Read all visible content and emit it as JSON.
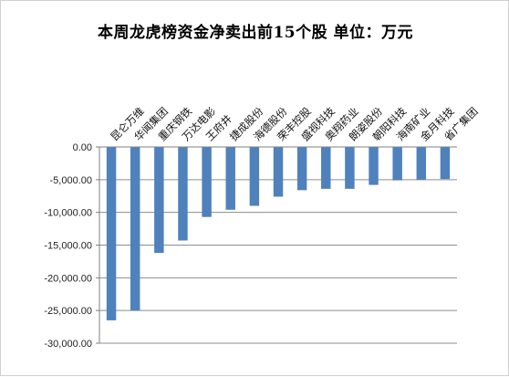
{
  "chart_data": {
    "type": "bar",
    "title": "本周龙虎榜资金净卖出前15个股  单位：万元",
    "categories": [
      "昆仑万维",
      "华闻集团",
      "重庆钢铁",
      "万达电影",
      "王府井",
      "捷成股份",
      "海德股份",
      "荣丰控股",
      "盛视科技",
      "奥翔药业",
      "朗姿股份",
      "朝阳科技",
      "海南矿业",
      "金月科技",
      "省广集团"
    ],
    "values": [
      -26500,
      -25000,
      -16200,
      -14300,
      -10700,
      -9600,
      -9000,
      -7600,
      -6600,
      -6400,
      -6400,
      -5800,
      -5100,
      -5000,
      -4900
    ],
    "ylim": [
      -30000,
      0
    ],
    "yticks": [
      "0.00",
      "-5,000.00",
      "-10,000.00",
      "-15,000.00",
      "-20,000.00",
      "-25,000.00",
      "-30,000.00"
    ],
    "grid": true,
    "legend": "none",
    "bar_color": "#4f81bd",
    "grid_color": "#8c8c8c"
  }
}
